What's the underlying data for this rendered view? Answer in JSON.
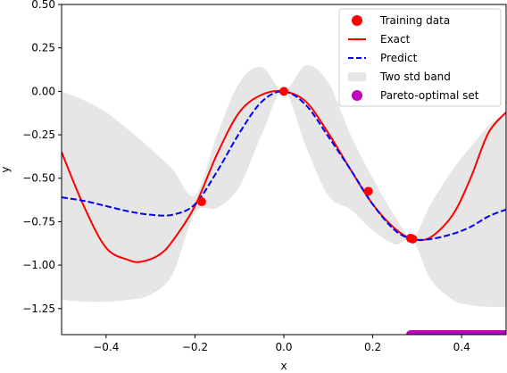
{
  "chart_data": {
    "type": "line",
    "xlabel": "x",
    "ylabel": "y",
    "xlim": [
      -0.5,
      0.5
    ],
    "ylim": [
      -1.4,
      0.5
    ],
    "x_ticks": [
      -0.4,
      -0.2,
      0.0,
      0.2,
      0.4
    ],
    "x_tick_labels": [
      "−0.4",
      "−0.2",
      "0.0",
      "0.2",
      "0.4"
    ],
    "y_ticks": [
      0.5,
      0.25,
      0.0,
      -0.25,
      -0.5,
      -0.75,
      -1.0,
      -1.25
    ],
    "y_tick_labels": [
      "0.50",
      "0.25",
      "0.00",
      "−0.25",
      "−0.50",
      "−0.75",
      "−1.00",
      "−1.25"
    ],
    "grid": false,
    "legend_position": "top-right",
    "legend": [
      {
        "label": "Training data",
        "kind": "marker",
        "color": "#ff0000"
      },
      {
        "label": "Exact",
        "kind": "line",
        "color": "#ff0000"
      },
      {
        "label": "Predict",
        "kind": "dashed",
        "color": "#0000ff"
      },
      {
        "label": "Two std band",
        "kind": "patch",
        "color": "#e6e6e6"
      },
      {
        "label": "Pareto-optimal set",
        "kind": "marker",
        "color": "#bf00bf"
      }
    ],
    "training_data": [
      {
        "x": -0.185,
        "y": -0.635
      },
      {
        "x": 0.0,
        "y": 0.0
      },
      {
        "x": 0.19,
        "y": -0.575
      },
      {
        "x": 0.285,
        "y": -0.845
      },
      {
        "x": 0.29,
        "y": -0.85
      }
    ],
    "exact": {
      "color": "#ff0000",
      "x": [
        -0.5,
        -0.45,
        -0.4,
        -0.35,
        -0.32,
        -0.28,
        -0.25,
        -0.2,
        -0.15,
        -0.1,
        -0.05,
        0.0,
        0.05,
        0.1,
        0.15,
        0.2,
        0.25,
        0.29,
        0.33,
        0.38,
        0.42,
        0.46,
        0.5
      ],
      "y": [
        -0.35,
        -0.66,
        -0.9,
        -0.97,
        -0.98,
        -0.94,
        -0.86,
        -0.66,
        -0.36,
        -0.12,
        -0.02,
        0.0,
        -0.06,
        -0.24,
        -0.45,
        -0.65,
        -0.79,
        -0.85,
        -0.84,
        -0.71,
        -0.5,
        -0.24,
        -0.12
      ]
    },
    "predict": {
      "color": "#0000ff",
      "x": [
        -0.5,
        -0.45,
        -0.4,
        -0.35,
        -0.3,
        -0.25,
        -0.2,
        -0.15,
        -0.1,
        -0.05,
        0.0,
        0.05,
        0.1,
        0.15,
        0.2,
        0.25,
        0.29,
        0.33,
        0.38,
        0.42,
        0.46,
        0.5
      ],
      "y": [
        -0.61,
        -0.63,
        -0.66,
        -0.69,
        -0.71,
        -0.71,
        -0.65,
        -0.46,
        -0.24,
        -0.06,
        0.0,
        -0.08,
        -0.26,
        -0.45,
        -0.65,
        -0.8,
        -0.85,
        -0.85,
        -0.82,
        -0.78,
        -0.72,
        -0.68
      ]
    },
    "two_std_band": {
      "color": "#e6e6e6",
      "x": [
        -0.5,
        -0.45,
        -0.4,
        -0.35,
        -0.3,
        -0.25,
        -0.2,
        -0.15,
        -0.1,
        -0.05,
        0.0,
        0.05,
        0.1,
        0.15,
        0.2,
        0.25,
        0.29,
        0.33,
        0.38,
        0.42,
        0.46,
        0.5
      ],
      "upper": [
        0.0,
        -0.05,
        -0.12,
        -0.22,
        -0.33,
        -0.45,
        -0.6,
        -0.25,
        0.05,
        0.14,
        0.0,
        0.15,
        0.05,
        -0.25,
        -0.5,
        -0.72,
        -0.84,
        -0.65,
        -0.45,
        -0.32,
        -0.2,
        -0.12
      ],
      "lower": [
        -1.2,
        -1.21,
        -1.21,
        -1.2,
        -1.17,
        -1.05,
        -0.7,
        -0.67,
        -0.55,
        -0.25,
        0.0,
        -0.32,
        -0.6,
        -0.68,
        -0.8,
        -0.88,
        -0.86,
        -1.08,
        -1.2,
        -1.23,
        -1.24,
        -1.24
      ]
    },
    "pareto_optimal_set": {
      "color": "#bf00bf",
      "y": -1.4,
      "x_start": 0.285,
      "x_end": 0.5,
      "step": 0.0025
    }
  }
}
